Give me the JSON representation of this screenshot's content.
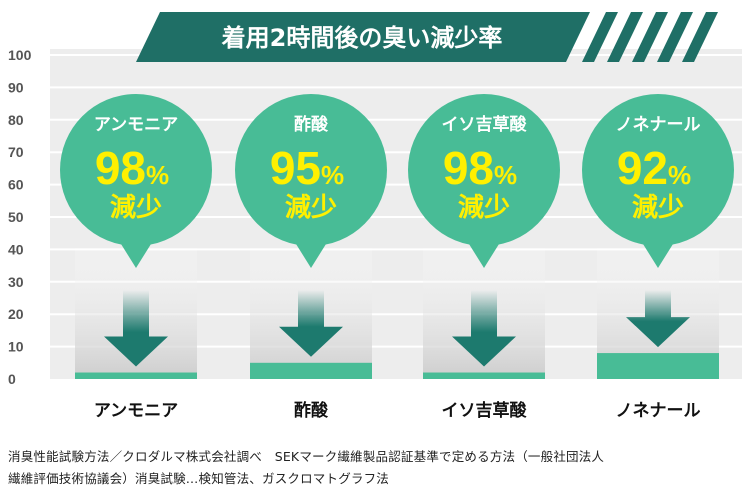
{
  "chart_data": {
    "type": "bar",
    "title": "着用2時間後の臭い減少率",
    "categories": [
      "アンモニア",
      "酢酸",
      "イソ吉草酸",
      "ノネナール"
    ],
    "series": [
      {
        "values": [
          2,
          5,
          2,
          8
        ]
      }
    ],
    "ylim": [
      0,
      100
    ],
    "yticks": [
      0,
      10,
      20,
      30,
      40,
      50,
      60,
      70,
      80,
      90,
      100
    ],
    "grid": true,
    "bubbles": [
      {
        "label": "アンモニア",
        "value": "98",
        "unit": "%",
        "suffix": "減少"
      },
      {
        "label": "酢酸",
        "value": "95",
        "unit": "%",
        "suffix": "減少"
      },
      {
        "label": "イソ吉草酸",
        "value": "98",
        "unit": "%",
        "suffix": "減少"
      },
      {
        "label": "ノネナール",
        "value": "92",
        "unit": "%",
        "suffix": "減少"
      }
    ]
  },
  "colors": {
    "accent": "#48BC96",
    "dark": "#1D7A6E",
    "banner": "#1F6F66",
    "percent": "#FFF000",
    "plot_bg": "#EDEDED",
    "grid": "#FFFFFF",
    "axis_text": "#555555"
  },
  "footnote": {
    "line1": "消臭性能試験方法／クロダルマ株式会社調べ　SEKマーク繊維製品認証基準で定める方法（一般社団法人",
    "line2": "繊維評価技術協議会）消臭試験…検知管法、ガスクロマトグラフ法"
  }
}
